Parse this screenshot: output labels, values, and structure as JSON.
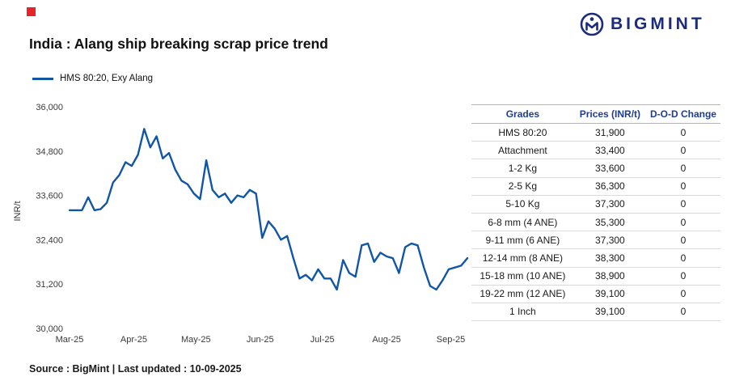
{
  "brand": {
    "mark_color": "#e8232a",
    "logo_text": "BIGMINT",
    "logo_color": "#1b2d7a"
  },
  "header": {
    "title": "India : Alang ship breaking scrap price trend"
  },
  "legend": {
    "label": "HMS 80:20, Exy Alang"
  },
  "chart_data": {
    "type": "line",
    "title": "India : Alang ship breaking scrap price trend",
    "ylabel": "INR/t",
    "ylim": [
      30000,
      36000
    ],
    "y_ticks": [
      36000,
      34800,
      33600,
      32400,
      31200,
      30000
    ],
    "x_ticks": [
      "Mar-25",
      "Apr-25",
      "May-25",
      "Jun-25",
      "Jul-25",
      "Aug-25",
      "Sep-25"
    ],
    "grid": false,
    "legend_position": "top-left",
    "series": [
      {
        "name": "HMS 80:20, Exy Alang",
        "color": "#1156a5",
        "x_start": "Mar-25",
        "x_end": "Sep-25",
        "step_days": 3,
        "span_days": 192,
        "values": [
          33200,
          33200,
          33200,
          33550,
          33200,
          33230,
          33400,
          33950,
          34150,
          34500,
          34400,
          34700,
          35400,
          34900,
          35200,
          34600,
          34750,
          34300,
          34000,
          33900,
          33650,
          33500,
          34550,
          33750,
          33550,
          33650,
          33400,
          33600,
          33550,
          33750,
          33650,
          32450,
          32900,
          32700,
          32400,
          32500,
          31900,
          31350,
          31450,
          31300,
          31600,
          31350,
          31350,
          31050,
          31850,
          31500,
          31400,
          32250,
          32300,
          31800,
          32050,
          31950,
          31900,
          31500,
          32200,
          32300,
          32250,
          31650,
          31150,
          31050,
          31300,
          31600,
          31650,
          31700,
          31900
        ]
      }
    ]
  },
  "table": {
    "header_color": "#1c3c97",
    "columns": [
      "Grades",
      "Prices (INR/t)",
      "D-O-D Change"
    ],
    "rows": [
      [
        "HMS 80:20",
        "31,900",
        "0"
      ],
      [
        "Attachment",
        "33,400",
        "0"
      ],
      [
        "1-2 Kg",
        "33,600",
        "0"
      ],
      [
        "2-5 Kg",
        "36,300",
        "0"
      ],
      [
        "5-10 Kg",
        "37,300",
        "0"
      ],
      [
        "6-8 mm (4 ANE)",
        "35,300",
        "0"
      ],
      [
        "9-11 mm (6 ANE)",
        "37,300",
        "0"
      ],
      [
        "12-14 mm (8 ANE)",
        "38,300",
        "0"
      ],
      [
        "15-18 mm (10 ANE)",
        "38,900",
        "0"
      ],
      [
        "19-22 mm (12 ANE)",
        "39,100",
        "0"
      ],
      [
        "1 Inch",
        "39,100",
        "0"
      ]
    ]
  },
  "footer": {
    "source_text": "Source : BigMint | Last updated : 10-09-2025"
  }
}
